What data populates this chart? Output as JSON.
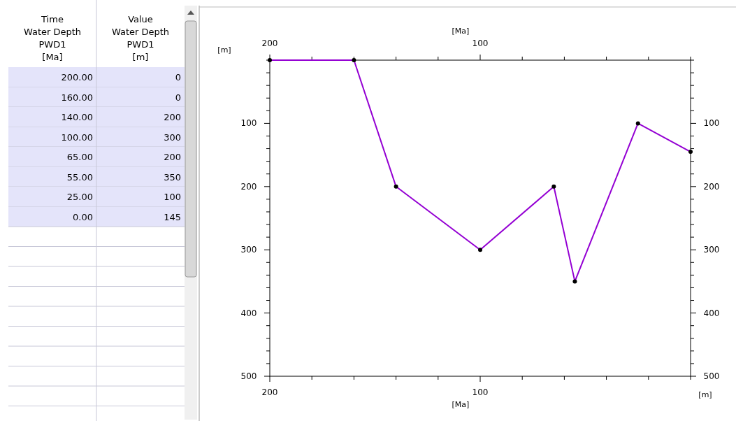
{
  "chart_data": [
    {
      "type": "other",
      "annotations": [
        "Time\nWater Depth\nPWD1\n[Ma]",
        "Value\nWater Depth\nPWD1\n[m]"
      ],
      "categories": [
        "200.00",
        "160.00",
        "140.00",
        "100.00",
        "65.00",
        "55.00",
        "25.00",
        "0.00"
      ],
      "values": [
        0,
        0,
        200,
        300,
        200,
        350,
        100,
        145
      ],
      "data_labels": true
    },
    {
      "type": "line",
      "xlabel": "[Ma]",
      "x2label": "[Ma]",
      "ylabel": "[m]",
      "y2label": "[m]",
      "x": [
        200,
        160,
        140,
        100,
        65,
        55,
        25,
        0
      ],
      "series": [
        {
          "color": "#9400d3",
          "values": [
            0,
            0,
            200,
            300,
            200,
            350,
            100,
            145
          ]
        }
      ],
      "marker": "circle",
      "line_style": "solid",
      "xlim": [
        200,
        0
      ],
      "x2lim": [
        200,
        0
      ],
      "xticks": [
        200,
        {
          "value": 180,
          "label": null
        },
        {
          "value": 160,
          "label": null
        },
        {
          "value": 140,
          "label": null
        },
        {
          "value": 120,
          "label": null
        },
        100,
        {
          "value": 80,
          "label": null
        },
        {
          "value": 60,
          "label": null
        },
        {
          "value": 40,
          "label": null
        },
        {
          "value": 20,
          "label": null
        },
        {
          "value": 0,
          "label": null
        }
      ],
      "x2ticks": [
        200,
        {
          "value": 180,
          "label": null
        },
        {
          "value": 160,
          "label": null
        },
        {
          "value": 140,
          "label": null
        },
        {
          "value": 120,
          "label": null
        },
        100,
        {
          "value": 80,
          "label": null
        },
        {
          "value": 60,
          "label": null
        },
        {
          "value": 40,
          "label": null
        },
        {
          "value": 20,
          "label": null
        },
        {
          "value": 0,
          "label": null
        }
      ],
      "ylim": [
        500,
        0
      ],
      "y2lim": [
        500,
        0
      ],
      "yticks": [
        {
          "value": 0,
          "label": null
        },
        {
          "value": 20,
          "label": null
        },
        {
          "value": 40,
          "label": null
        },
        {
          "value": 60,
          "label": null
        },
        {
          "value": 80,
          "label": null
        },
        100,
        {
          "value": 120,
          "label": null
        },
        {
          "value": 140,
          "label": null
        },
        {
          "value": 160,
          "label": null
        },
        {
          "value": 180,
          "label": null
        },
        200,
        {
          "value": 220,
          "label": null
        },
        {
          "value": 240,
          "label": null
        },
        {
          "value": 260,
          "label": null
        },
        {
          "value": 280,
          "label": null
        },
        300,
        {
          "value": 320,
          "label": null
        },
        {
          "value": 340,
          "label": null
        },
        {
          "value": 360,
          "label": null
        },
        {
          "value": 380,
          "label": null
        },
        400,
        {
          "value": 420,
          "label": null
        },
        {
          "value": 440,
          "label": null
        },
        {
          "value": 460,
          "label": null
        },
        {
          "value": 480,
          "label": null
        },
        500
      ],
      "y2ticks": [
        {
          "value": 0,
          "label": null
        },
        {
          "value": 20,
          "label": null
        },
        {
          "value": 40,
          "label": null
        },
        {
          "value": 60,
          "label": null
        },
        {
          "value": 80,
          "label": null
        },
        100,
        {
          "value": 120,
          "label": null
        },
        {
          "value": 140,
          "label": null
        },
        {
          "value": 160,
          "label": null
        },
        {
          "value": 180,
          "label": null
        },
        200,
        {
          "value": 220,
          "label": null
        },
        {
          "value": 240,
          "label": null
        },
        {
          "value": 260,
          "label": null
        },
        {
          "value": 280,
          "label": null
        },
        300,
        {
          "value": 320,
          "label": null
        },
        {
          "value": 340,
          "label": null
        },
        {
          "value": 360,
          "label": null
        },
        {
          "value": 380,
          "label": null
        },
        400,
        {
          "value": 420,
          "label": null
        },
        {
          "value": 440,
          "label": null
        },
        {
          "value": 460,
          "label": null
        },
        {
          "value": 480,
          "label": null
        },
        500
      ]
    }
  ]
}
